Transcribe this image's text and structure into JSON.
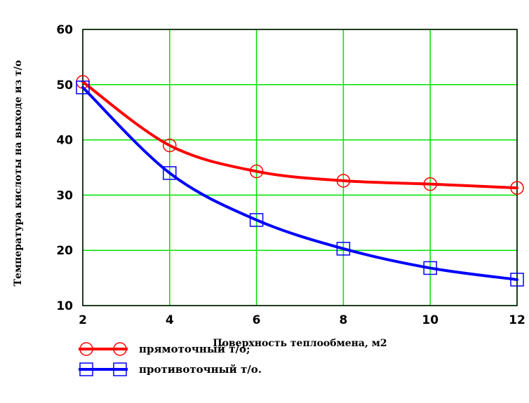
{
  "chart_data": {
    "type": "line",
    "title": "",
    "xlabel": "Поверхность теплообмена, м2",
    "ylabel": "Температура кислоты на выходе из т/о",
    "xlim": [
      2,
      12
    ],
    "ylim": [
      10,
      60
    ],
    "x_ticks": [
      "2",
      "4",
      "6",
      "8",
      "10",
      "12"
    ],
    "y_ticks": [
      "10",
      "20",
      "30",
      "40",
      "50",
      "60"
    ],
    "grid": true,
    "grid_color": "#00e000",
    "legend_position": "bottom-left",
    "series": [
      {
        "name": "прямоточный т/о;",
        "color": "#ff0000",
        "marker": "circle",
        "x": [
          2,
          4,
          6,
          8,
          10,
          12
        ],
        "y": [
          50.5,
          39,
          34.3,
          32.6,
          32,
          31.3
        ]
      },
      {
        "name": "противоточный т/о.",
        "color": "#0000ff",
        "marker": "square",
        "x": [
          2,
          4,
          6,
          8,
          10,
          12
        ],
        "y": [
          49.5,
          34,
          25.5,
          20.3,
          16.8,
          14.7
        ]
      }
    ]
  }
}
